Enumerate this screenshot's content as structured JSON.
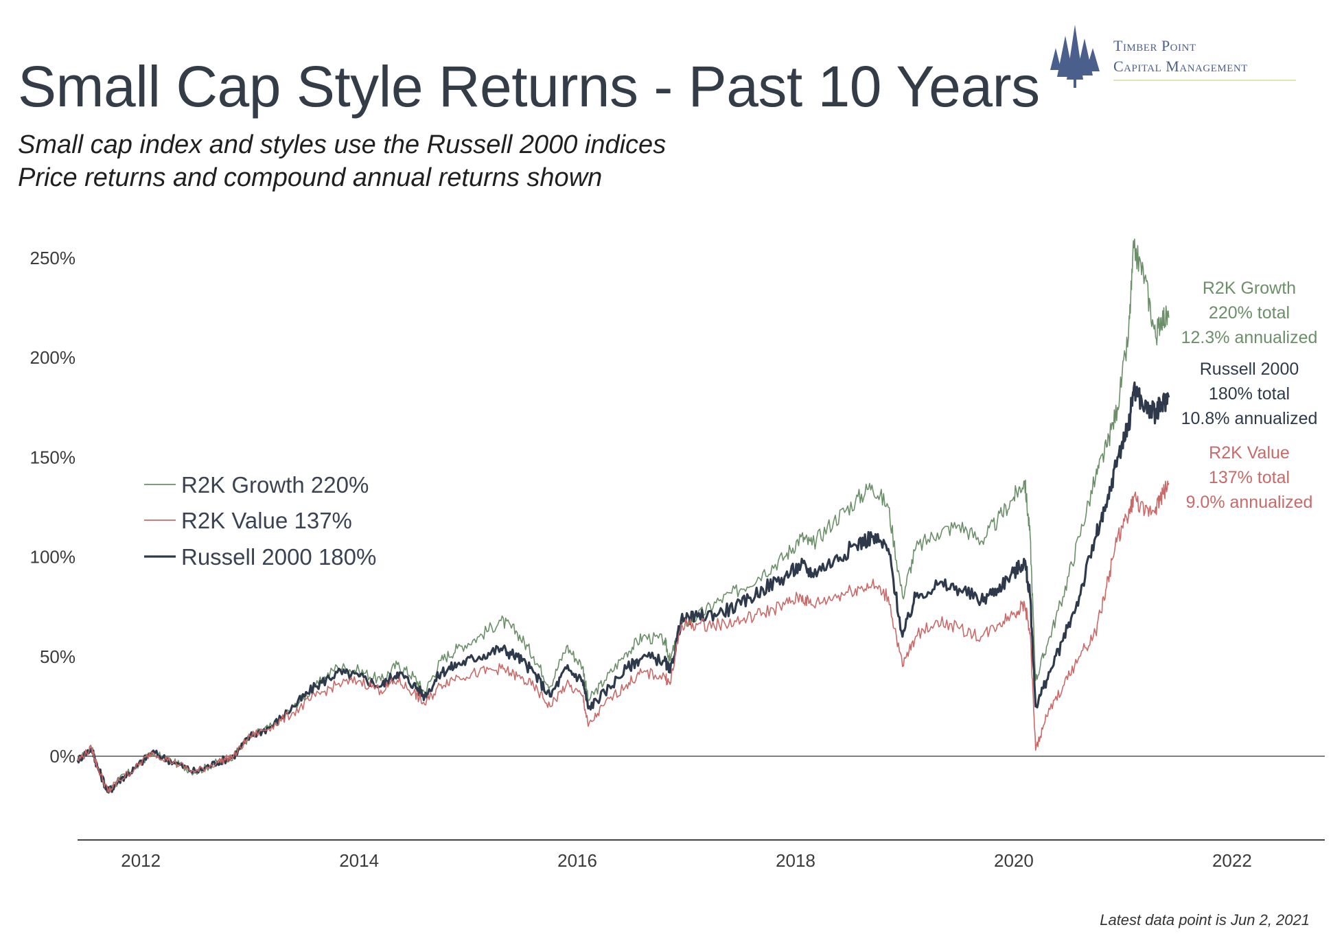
{
  "header": {
    "title": "Small Cap Style Returns - Past 10 Years",
    "subtitle_line1": "Small cap index and styles use the Russell 2000 indices",
    "subtitle_line2": "Price returns and compound annual returns shown"
  },
  "logo": {
    "line1": "Timber Point",
    "line2": "Capital Management",
    "icon": "pine-trees-icon"
  },
  "footnote": "Latest data point is Jun 2, 2021",
  "chart_data": {
    "type": "line",
    "x_ticks": [
      "2012",
      "2014",
      "2016",
      "2018",
      "2020",
      "2022"
    ],
    "x_range": [
      2011.42,
      2022.85
    ],
    "y_ticks": [
      "0%",
      "50%",
      "100%",
      "150%",
      "200%",
      "250%"
    ],
    "y_range": [
      -40,
      265
    ],
    "y_unit": "%",
    "grid": false,
    "zero_line": true,
    "legend_position": "left",
    "legend": [
      {
        "label": "R2K Growth 220%",
        "series": "growth"
      },
      {
        "label": "R2K Value 137%",
        "series": "value"
      },
      {
        "label": "Russell 2000 180%",
        "series": "russell"
      }
    ],
    "annotations": [
      {
        "series": "growth",
        "lines": [
          "R2K Growth",
          "220% total",
          "12.3% annualized"
        ]
      },
      {
        "series": "russell",
        "lines": [
          "Russell 2000",
          "180% total",
          "10.8% annualized"
        ]
      },
      {
        "series": "value",
        "lines": [
          "R2K Value",
          "137% total",
          "9.0% annualized"
        ]
      }
    ],
    "colors": {
      "growth": "#6b8f68",
      "value": "#c96a68",
      "russell": "#2e3a4b",
      "axis": "#444444"
    },
    "series": [
      {
        "id": "growth",
        "name": "R2K Growth",
        "x": [
          2011.42,
          2011.55,
          2011.6,
          2011.7,
          2011.8,
          2011.95,
          2012.1,
          2012.3,
          2012.5,
          2012.7,
          2012.85,
          2013.0,
          2013.2,
          2013.4,
          2013.6,
          2013.8,
          2014.0,
          2014.2,
          2014.35,
          2014.5,
          2014.6,
          2014.75,
          2014.9,
          2015.1,
          2015.3,
          2015.45,
          2015.6,
          2015.75,
          2015.9,
          2016.05,
          2016.1,
          2016.25,
          2016.45,
          2016.6,
          2016.8,
          2016.85,
          2016.95,
          2017.1,
          2017.3,
          2017.5,
          2017.7,
          2017.9,
          2018.05,
          2018.15,
          2018.35,
          2018.55,
          2018.7,
          2018.85,
          2018.98,
          2019.1,
          2019.3,
          2019.5,
          2019.7,
          2019.85,
          2020.0,
          2020.1,
          2020.15,
          2020.2,
          2020.3,
          2020.45,
          2020.6,
          2020.75,
          2020.85,
          2020.95,
          2021.05,
          2021.1,
          2021.2,
          2021.3,
          2021.35,
          2021.42
        ],
        "y": [
          -2,
          4,
          -5,
          -18,
          -12,
          -6,
          2,
          -3,
          -8,
          -3,
          0,
          10,
          15,
          25,
          35,
          45,
          43,
          38,
          46,
          40,
          32,
          48,
          54,
          60,
          68,
          62,
          50,
          35,
          55,
          45,
          28,
          38,
          52,
          60,
          58,
          48,
          66,
          70,
          78,
          84,
          92,
          100,
          110,
          106,
          118,
          128,
          136,
          125,
          80,
          104,
          112,
          116,
          108,
          118,
          130,
          138,
          110,
          38,
          55,
          80,
          110,
          140,
          155,
          175,
          210,
          255,
          240,
          210,
          220,
          220
        ]
      },
      {
        "id": "russell",
        "name": "Russell 2000",
        "x": [
          2011.42,
          2011.55,
          2011.6,
          2011.7,
          2011.8,
          2011.95,
          2012.1,
          2012.3,
          2012.5,
          2012.7,
          2012.85,
          2013.0,
          2013.2,
          2013.4,
          2013.6,
          2013.8,
          2014.0,
          2014.2,
          2014.35,
          2014.5,
          2014.6,
          2014.75,
          2014.9,
          2015.1,
          2015.3,
          2015.45,
          2015.6,
          2015.75,
          2015.9,
          2016.05,
          2016.1,
          2016.25,
          2016.45,
          2016.6,
          2016.8,
          2016.85,
          2016.95,
          2017.1,
          2017.3,
          2017.5,
          2017.7,
          2017.9,
          2018.05,
          2018.15,
          2018.35,
          2018.55,
          2018.7,
          2018.85,
          2018.98,
          2019.1,
          2019.3,
          2019.5,
          2019.7,
          2019.85,
          2020.0,
          2020.1,
          2020.15,
          2020.2,
          2020.3,
          2020.45,
          2020.6,
          2020.75,
          2020.85,
          2020.95,
          2021.05,
          2021.1,
          2021.2,
          2021.3,
          2021.35,
          2021.42
        ],
        "y": [
          -2,
          4,
          -5,
          -18,
          -12,
          -6,
          2,
          -3,
          -8,
          -3,
          0,
          10,
          15,
          25,
          35,
          42,
          40,
          35,
          42,
          36,
          30,
          42,
          46,
          50,
          54,
          50,
          42,
          30,
          44,
          38,
          24,
          32,
          44,
          50,
          48,
          42,
          68,
          70,
          72,
          76,
          84,
          90,
          96,
          92,
          98,
          106,
          110,
          104,
          60,
          80,
          86,
          84,
          78,
          84,
          92,
          98,
          80,
          25,
          38,
          58,
          80,
          110,
          125,
          150,
          165,
          185,
          175,
          172,
          176,
          180
        ]
      },
      {
        "id": "value",
        "name": "R2K Value",
        "x": [
          2011.42,
          2011.55,
          2011.6,
          2011.7,
          2011.8,
          2011.95,
          2012.1,
          2012.3,
          2012.5,
          2012.7,
          2012.85,
          2013.0,
          2013.2,
          2013.4,
          2013.6,
          2013.8,
          2014.0,
          2014.2,
          2014.35,
          2014.5,
          2014.6,
          2014.75,
          2014.9,
          2015.1,
          2015.3,
          2015.45,
          2015.6,
          2015.75,
          2015.9,
          2016.05,
          2016.1,
          2016.25,
          2016.45,
          2016.6,
          2016.8,
          2016.85,
          2016.95,
          2017.1,
          2017.3,
          2017.5,
          2017.7,
          2017.9,
          2018.05,
          2018.15,
          2018.35,
          2018.55,
          2018.7,
          2018.85,
          2018.98,
          2019.1,
          2019.3,
          2019.5,
          2019.7,
          2019.85,
          2020.0,
          2020.1,
          2020.15,
          2020.2,
          2020.3,
          2020.45,
          2020.6,
          2020.75,
          2020.85,
          2020.95,
          2021.05,
          2021.1,
          2021.2,
          2021.3,
          2021.35,
          2021.42
        ],
        "y": [
          -2,
          4,
          -5,
          -18,
          -12,
          -6,
          2,
          -3,
          -8,
          -3,
          0,
          10,
          15,
          22,
          30,
          36,
          38,
          33,
          38,
          32,
          26,
          36,
          40,
          42,
          44,
          40,
          35,
          25,
          36,
          30,
          15,
          26,
          36,
          42,
          40,
          36,
          66,
          66,
          66,
          68,
          72,
          76,
          80,
          76,
          80,
          84,
          86,
          80,
          45,
          60,
          68,
          64,
          60,
          66,
          72,
          76,
          62,
          3,
          20,
          35,
          50,
          62,
          85,
          110,
          120,
          130,
          122,
          125,
          130,
          137
        ]
      }
    ]
  }
}
